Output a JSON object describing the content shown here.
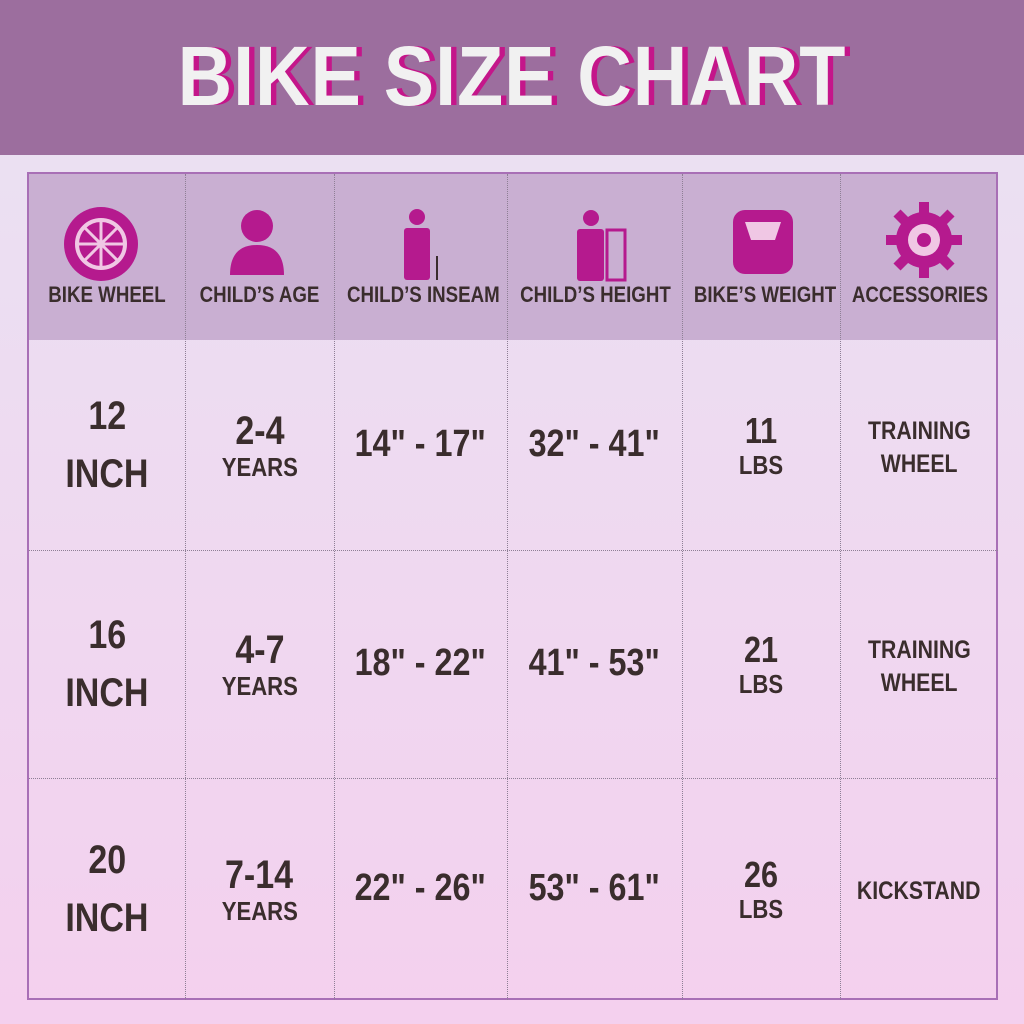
{
  "header": {
    "title": "BIKE SIZE CHART"
  },
  "table": {
    "columns": [
      "BIKE WHEEL",
      "CHILD’S AGE",
      "CHILD’S INSEAM",
      "CHILD’S HEIGHT",
      "BIKE’S WEIGHT",
      "ACCESSORIES"
    ],
    "rows": [
      [
        [
          "12",
          "INCH"
        ],
        [
          "2-4",
          "YEARS"
        ],
        [
          "14\" - 17\""
        ],
        [
          "32\" - 41\""
        ],
        [
          "11",
          "LBS"
        ],
        [
          "TRAINING",
          "WHEEL"
        ]
      ],
      [
        [
          "16",
          "INCH"
        ],
        [
          "4-7",
          "YEARS"
        ],
        [
          "18\" - 22\""
        ],
        [
          "41\" - 53\""
        ],
        [
          "21",
          "LBS"
        ],
        [
          "TRAINING",
          "WHEEL"
        ]
      ],
      [
        [
          "20",
          "INCH"
        ],
        [
          "7-14",
          "YEARS"
        ],
        [
          "22\" - 26\""
        ],
        [
          "53\" - 61\""
        ],
        [
          "26",
          "LBS"
        ],
        [
          "KICKSTAND"
        ]
      ]
    ]
  }
}
